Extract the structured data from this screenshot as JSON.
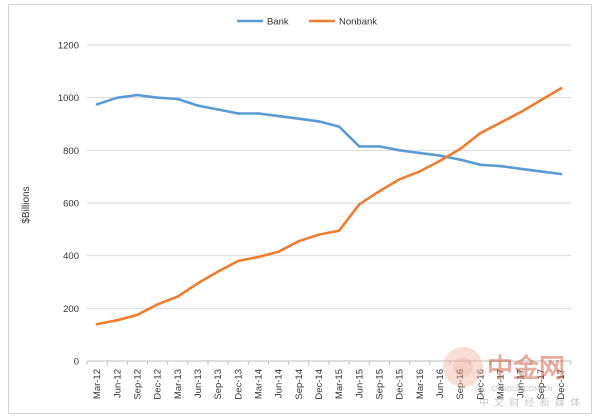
{
  "chart_data": {
    "type": "line",
    "title": "",
    "xlabel": "",
    "ylabel": "$Billions",
    "ylim": [
      0,
      1200
    ],
    "yticks": [
      0,
      200,
      400,
      600,
      800,
      1000,
      1200
    ],
    "grid": true,
    "legend": "top-center",
    "categories": [
      "Mar-12",
      "Jun-12",
      "Sep-12",
      "Dec-12",
      "Mar-13",
      "Jun-13",
      "Sep-13",
      "Dec-13",
      "Mar-14",
      "Jun-14",
      "Sep-14",
      "Dec-14",
      "Mar-15",
      "Jun-15",
      "Sep-15",
      "Dec-15",
      "Mar-16",
      "Jun-16",
      "Sep-16",
      "Dec-16",
      "Mar-17",
      "Jun-17",
      "Sep-17",
      "Dec-17"
    ],
    "series": [
      {
        "name": "Bank",
        "color": "#5b9bd5",
        "values": [
          975,
          1000,
          1010,
          1000,
          995,
          970,
          955,
          940,
          940,
          930,
          920,
          910,
          890,
          815,
          815,
          800,
          790,
          780,
          765,
          745,
          740,
          730,
          720,
          710
        ]
      },
      {
        "name": "Nonbank",
        "color": "#ed7d31",
        "values": [
          140,
          155,
          175,
          215,
          245,
          295,
          340,
          380,
          395,
          415,
          455,
          480,
          495,
          595,
          645,
          690,
          720,
          760,
          805,
          865,
          905,
          945,
          990,
          1035
        ]
      }
    ]
  },
  "watermark": {
    "logo_text": "中金网",
    "sub_text": "中 文 财 经 新 媒 体",
    "url_text": "CNGOLD.COM.CN"
  }
}
